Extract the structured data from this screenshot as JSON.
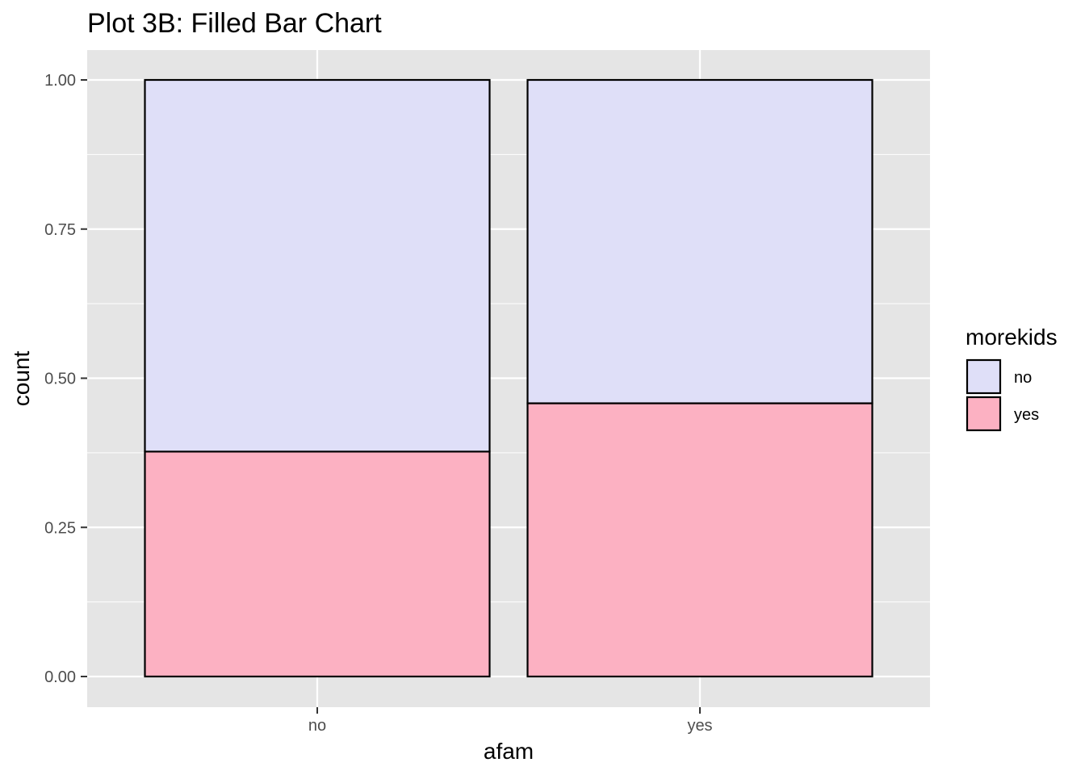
{
  "chart_data": {
    "type": "bar",
    "stacked": true,
    "position": "fill",
    "title": "Plot 3B: Filled Bar Chart",
    "xlabel": "afam",
    "ylabel": "count",
    "categories": [
      "no",
      "yes"
    ],
    "series": [
      {
        "name": "no",
        "values": [
          0.623,
          0.542
        ],
        "color": "#dfdff8"
      },
      {
        "name": "yes",
        "values": [
          0.377,
          0.458
        ],
        "color": "#fcb1c2"
      }
    ],
    "ylim": [
      0,
      1
    ],
    "yticks": [
      "0.00",
      "0.25",
      "0.50",
      "0.75",
      "1.00"
    ],
    "ytick_values": [
      0,
      0.25,
      0.5,
      0.75,
      1.0
    ],
    "legend": {
      "title": "morekids",
      "placement": "right"
    },
    "panel_background": "#e5e5e5",
    "grid_color": "#ffffff",
    "bar_outline": "#000000",
    "grid": true
  }
}
